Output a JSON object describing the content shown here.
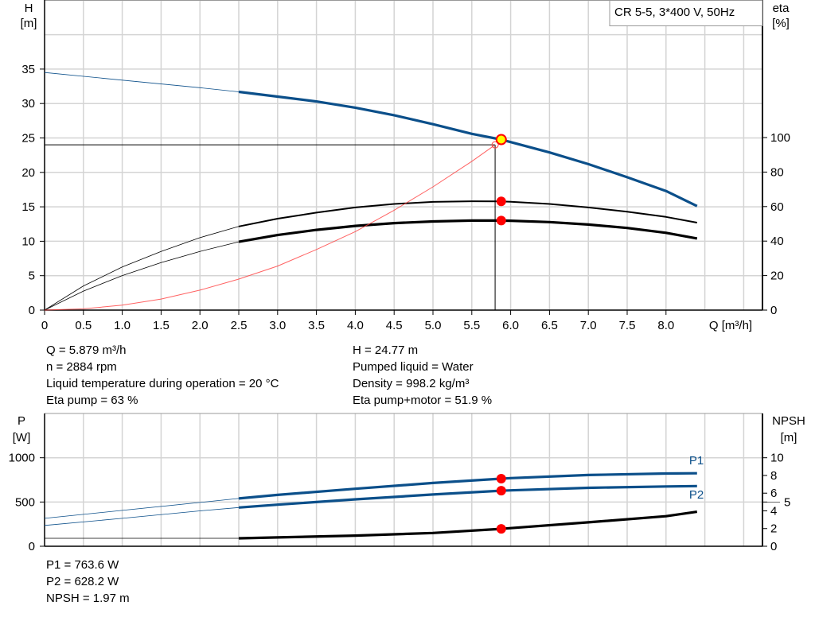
{
  "chart_data": [
    {
      "type": "line",
      "title": "CR 5-5, 3*400 V, 50Hz",
      "xlabel": "Q [m³/h]",
      "ylabel": "H\n[m]",
      "ylabel_unit": "[m]",
      "ylabel_name": "H",
      "y2label_name": "eta",
      "y2label_unit": "[%]",
      "xlim": [
        0,
        9.0
      ],
      "ylim": [
        0,
        40
      ],
      "y2lim": [
        0,
        100
      ],
      "grid": true,
      "x_ticks": [
        "0",
        "0.5",
        "1.0",
        "1.5",
        "2.0",
        "2.5",
        "3.0",
        "3.5",
        "4.0",
        "4.5",
        "5.0",
        "5.5",
        "6.0",
        "6.5",
        "7.0",
        "7.5",
        "8.0"
      ],
      "y_ticks": [
        0,
        5,
        10,
        15,
        20,
        25,
        30,
        35
      ],
      "y2_ticks": [
        0,
        20,
        40,
        60,
        80,
        100
      ],
      "series": [
        {
          "key": "H",
          "axis": "left",
          "color": "#0b4f8a",
          "thin_until": 2.5,
          "x": [
            0,
            1,
            2,
            2.5,
            3,
            3.5,
            4,
            4.5,
            5,
            5.5,
            5.879,
            6,
            6.5,
            7,
            7.5,
            8,
            8.4
          ],
          "y": [
            34.5,
            33.4,
            32.3,
            31.7,
            31.0,
            30.3,
            29.4,
            28.3,
            27.0,
            25.6,
            24.77,
            24.4,
            22.9,
            21.2,
            19.3,
            17.3,
            15.1
          ]
        },
        {
          "key": "eta_pump",
          "axis": "right",
          "color": "#000000",
          "thin_until": 2.5,
          "x": [
            0,
            0.5,
            1,
            1.5,
            2,
            2.5,
            3,
            3.5,
            4,
            4.5,
            5,
            5.5,
            5.879,
            6,
            6.5,
            7,
            7.5,
            8,
            8.4
          ],
          "y": [
            0,
            14,
            25,
            34,
            42,
            48.5,
            53,
            56.5,
            59.5,
            61.5,
            62.7,
            63.1,
            63,
            62.8,
            61.5,
            59.5,
            57,
            54,
            50.7
          ]
        },
        {
          "key": "eta_pump_motor",
          "axis": "right",
          "color": "#000000",
          "thin_until": 2.5,
          "x": [
            0,
            0.5,
            1,
            1.5,
            2,
            2.5,
            3,
            3.5,
            4,
            4.5,
            5,
            5.5,
            5.879,
            6,
            6.5,
            7,
            7.5,
            8,
            8.4
          ],
          "y": [
            0,
            11,
            20,
            27.5,
            34,
            39.6,
            43.5,
            46.5,
            48.8,
            50.4,
            51.4,
            51.9,
            51.9,
            51.8,
            51,
            49.6,
            47.6,
            44.8,
            41.5
          ]
        },
        {
          "key": "system",
          "axis": "left",
          "color": "#ff3b3b",
          "thin_until": 99,
          "x": [
            0,
            0.5,
            1,
            1.5,
            2,
            2.5,
            3,
            3.5,
            4,
            4.5,
            5,
            5.5,
            5.8
          ],
          "y": [
            0,
            0.18,
            0.72,
            1.6,
            2.9,
            4.5,
            6.4,
            8.8,
            11.4,
            14.5,
            17.9,
            21.6,
            24.0
          ]
        }
      ],
      "operating_point": {
        "Q": 5.879,
        "H": 24.77,
        "eta_pump": 63,
        "eta_pump_motor": 51.9
      },
      "reference_point": {
        "Q": 5.8,
        "H": 24.0
      }
    },
    {
      "type": "line",
      "ylabel_name": "P",
      "ylabel_unit": "[W]",
      "y2label_name": "NPSH",
      "y2label_unit": "[m]",
      "xlim": [
        0,
        9.0
      ],
      "ylim": [
        0,
        1500
      ],
      "y2lim": [
        0,
        15
      ],
      "grid": true,
      "y_ticks": [
        0,
        500,
        1000
      ],
      "y2_ticks": [
        "0",
        "2",
        "4",
        "5",
        "6",
        "8",
        "10"
      ],
      "series": [
        {
          "name": "P1",
          "key": "P1",
          "axis": "left",
          "color": "#0b4f8a",
          "thin_until": 2.5,
          "x": [
            0,
            1,
            2,
            2.5,
            3,
            4,
            5,
            5.879,
            6,
            7,
            8,
            8.4
          ],
          "y": [
            315,
            405,
            495,
            540,
            580,
            650,
            715,
            763.6,
            770,
            805,
            822,
            825
          ]
        },
        {
          "name": "P2",
          "key": "P2",
          "axis": "left",
          "color": "#0b4f8a",
          "thin_until": 2.5,
          "x": [
            0,
            1,
            2,
            2.5,
            3,
            4,
            5,
            5.879,
            6,
            7,
            8,
            8.4
          ],
          "y": [
            235,
            315,
            400,
            438,
            470,
            530,
            585,
            628.2,
            632,
            660,
            676,
            680
          ]
        },
        {
          "key": "NPSH",
          "axis": "right",
          "color": "#000000",
          "thin_until": 2.5,
          "x": [
            0,
            1,
            2,
            2.5,
            3,
            4,
            5,
            5.879,
            6,
            7,
            8,
            8.4
          ],
          "y": [
            0.9,
            0.9,
            0.9,
            0.9,
            1.0,
            1.2,
            1.5,
            1.97,
            2.05,
            2.7,
            3.4,
            3.9
          ]
        }
      ],
      "operating_point": {
        "Q": 5.879,
        "P1": 763.6,
        "P2": 628.2,
        "NPSH": 1.97
      }
    }
  ],
  "info_top_left": [
    "Q = 5.879 m³/h",
    "n = 2884 rpm",
    "Liquid temperature during operation = 20 °C",
    "Eta pump = 63 %"
  ],
  "info_top_right": [
    "H = 24.77 m",
    "Pumped liquid = Water",
    "Density = 998.2 kg/m³",
    "Eta pump+motor = 51.9 %"
  ],
  "info_bottom": [
    "P1 = 763.6 W",
    "P2 = 628.2 W",
    "NPSH = 1.97 m"
  ],
  "colors": {
    "pump_curve": "#0b4f8a",
    "marker": "#ff0000",
    "operating_point_fill": "#ffff00",
    "grid": "#d4d4d4"
  }
}
